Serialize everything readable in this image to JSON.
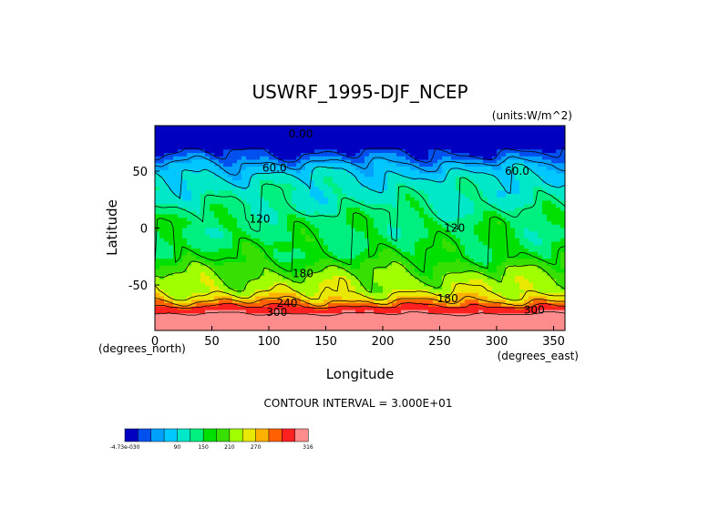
{
  "chart_data": {
    "type": "heatmap",
    "title": "USWRF_1995-DJF_NCEP",
    "units": "(units:W/m^2)",
    "xlabel": "Longitude",
    "ylabel": "Latitude",
    "x_unit_note": "(degrees_east)",
    "y_unit_note": "(degrees_north)",
    "xlim": [
      0,
      360
    ],
    "ylim": [
      -90,
      90
    ],
    "x_ticks": [
      0,
      50,
      100,
      150,
      200,
      250,
      300,
      350
    ],
    "y_ticks": [
      50,
      0,
      -50
    ],
    "contour_interval_text": "CONTOUR INTERVAL = 3.000E+01",
    "contour_labels": [
      {
        "text": "0.00",
        "lon": 128,
        "lat": 83
      },
      {
        "text": "60.0",
        "lon": 105,
        "lat": 53
      },
      {
        "text": "60.0",
        "lon": 318,
        "lat": 50
      },
      {
        "text": "120",
        "lon": 92,
        "lat": 8
      },
      {
        "text": "120",
        "lon": 263,
        "lat": 0
      },
      {
        "text": "180",
        "lon": 130,
        "lat": -40
      },
      {
        "text": "180",
        "lon": 257,
        "lat": -62
      },
      {
        "text": "240",
        "lon": 116,
        "lat": -66
      },
      {
        "text": "300",
        "lon": 107,
        "lat": -74
      },
      {
        "text": "300",
        "lon": 333,
        "lat": -72
      }
    ],
    "colorbar": {
      "colors": [
        "#0000c0",
        "#0050f0",
        "#00a0ff",
        "#00c8ff",
        "#00e8c8",
        "#00f080",
        "#00e000",
        "#38e000",
        "#a0ff00",
        "#e8e800",
        "#ffb000",
        "#ff6000",
        "#ff2020",
        "#ff8c8c"
      ],
      "tick_labels": [
        "-4.73e-030",
        "90",
        "150",
        "210",
        "270",
        "316"
      ]
    },
    "zonal_profile": [
      {
        "lat": 90,
        "value": 5
      },
      {
        "lat": 85,
        "value": 10
      },
      {
        "lat": 70,
        "value": 15
      },
      {
        "lat": 60,
        "value": 45
      },
      {
        "lat": 55,
        "value": 68
      },
      {
        "lat": 45,
        "value": 92
      },
      {
        "lat": 35,
        "value": 105
      },
      {
        "lat": 25,
        "value": 110
      },
      {
        "lat": 15,
        "value": 120
      },
      {
        "lat": 5,
        "value": 132
      },
      {
        "lat": -5,
        "value": 130
      },
      {
        "lat": -15,
        "value": 138
      },
      {
        "lat": -25,
        "value": 145
      },
      {
        "lat": -35,
        "value": 168
      },
      {
        "lat": -45,
        "value": 188
      },
      {
        "lat": -55,
        "value": 200
      },
      {
        "lat": -62,
        "value": 225
      },
      {
        "lat": -68,
        "value": 262
      },
      {
        "lat": -72,
        "value": 285
      },
      {
        "lat": -78,
        "value": 310
      },
      {
        "lat": -90,
        "value": 316
      }
    ]
  }
}
